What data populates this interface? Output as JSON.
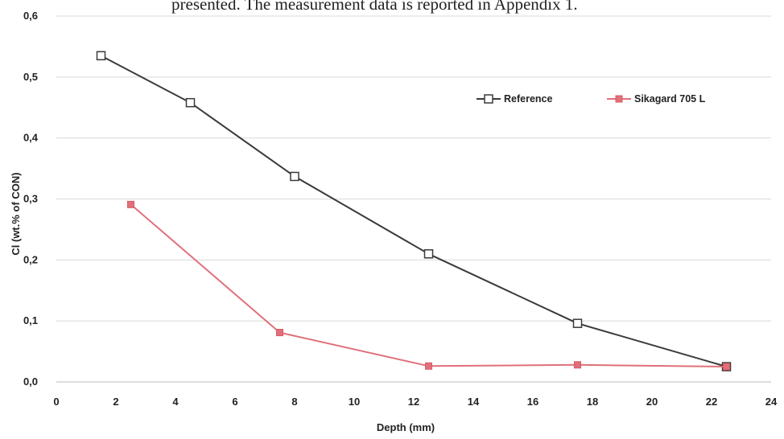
{
  "header_text": "presented. The measurement data is reported in Appendix 1.",
  "colors": {
    "reference": "#3a3a3a",
    "sikagard": "#e0707a",
    "grid": "#d9d9d9",
    "axis": "#bdbdbd"
  },
  "chart_data": {
    "type": "line",
    "title": "",
    "xlabel": "Depth (mm)",
    "ylabel": "Cl (wt.% of CON)",
    "xlim": [
      0,
      24
    ],
    "ylim": [
      0,
      0.6
    ],
    "x_ticks": [
      "0",
      "2",
      "4",
      "6",
      "8",
      "10",
      "12",
      "14",
      "16",
      "18",
      "20",
      "22",
      "24"
    ],
    "y_ticks": [
      "0,0",
      "0,1",
      "0,2",
      "0,3",
      "0,4",
      "0,5",
      "0,6"
    ],
    "grid": "horizontal",
    "legend_position": "top-right",
    "series": [
      {
        "name": "Reference",
        "marker": "open-square",
        "x": [
          1.5,
          4.5,
          8,
          12.5,
          17.5,
          22.5
        ],
        "y": [
          0.535,
          0.458,
          0.337,
          0.21,
          0.096,
          0.025
        ]
      },
      {
        "name": "Sikagard 705 L",
        "marker": "filled-square",
        "x": [
          2.5,
          7.5,
          12.5,
          17.5,
          22.5
        ],
        "y": [
          0.291,
          0.081,
          0.026,
          0.028,
          0.025
        ]
      }
    ]
  }
}
